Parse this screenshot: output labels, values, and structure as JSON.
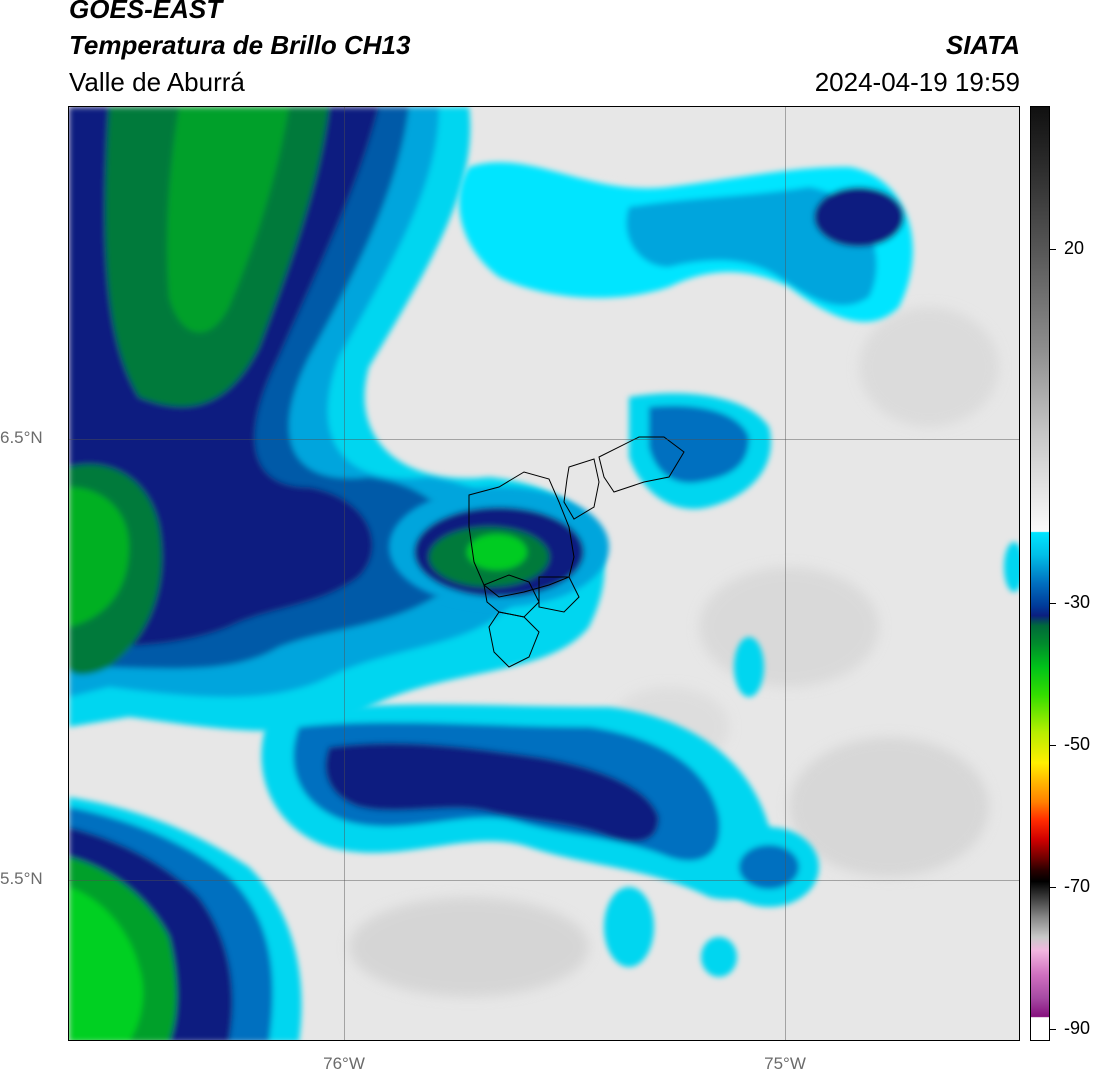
{
  "header": {
    "title_line1": "GOES-EAST",
    "title_line2": "Temperatura de Brillo CH13",
    "subtitle": "Valle de Aburrá",
    "organization": "SIATA",
    "timestamp": "2024-04-19 19:59"
  },
  "map": {
    "lat_labels": [
      "6.5°N",
      "5.5°N"
    ],
    "lon_labels": [
      "76°W",
      "75°W"
    ]
  },
  "colorbar": {
    "tick_labels": [
      "20",
      "-30",
      "-50",
      "-70",
      "-90"
    ],
    "colors": {
      "clear_warm": "#e6e6e6",
      "cyan": "#00e5ff",
      "blue": "#0070c0",
      "navy": "#0b1f80",
      "green": "#008a2c",
      "bright_green": "#33dd00",
      "yellow": "#ffef00",
      "red": "#d00000",
      "magenta": "#86107d"
    }
  }
}
